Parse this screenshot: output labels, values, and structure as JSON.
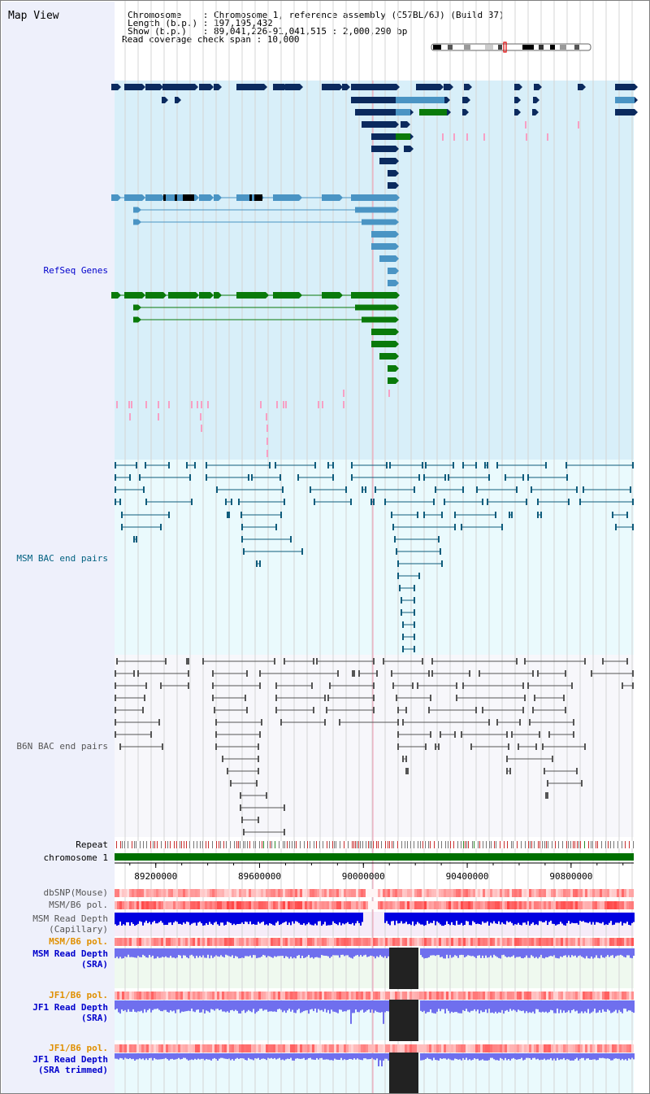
{
  "page": {
    "title": "Map View"
  },
  "header": {
    "lines": [
      "Chromosome    : Chromosome 1, reference assembly (C57BL/6J) (Build 37)",
      "Length (b.p.) : 197,195,432",
      "Show (b.p.)   : 89,041,226-91,041,515 : 2,000,290 bp",
      "Read coverage check span : 10,000"
    ]
  },
  "tracks": {
    "refseq_genes": "RefSeq Genes",
    "msm_bac": "MSM BAC end pairs",
    "b6n_bac": "B6N BAC end pairs",
    "repeat": "Repeat",
    "chromosome": "chromosome 1",
    "dbsnp": "dbSNP(Mouse)",
    "msm_b6_pol_1": "MSM/B6 pol.",
    "msm_depth_cap_1": "MSM Read Depth",
    "msm_depth_cap_2": "(Capillary)",
    "msm_b6_pol_2": "MSM/B6 pol.",
    "msm_depth_sra_1": "MSM Read Depth",
    "msm_depth_sra_2": "(SRA)",
    "jf1_b6_pol_1": "JF1/B6 pol.",
    "jf1_depth_sra_1": "JF1 Read Depth",
    "jf1_depth_sra_2": "(SRA)",
    "jf1_b6_pol_2": "JF1/B6 pol.",
    "jf1_depth_trim_1": "JF1 Read Depth",
    "jf1_depth_trim_2": "(SRA trimmed)"
  },
  "axis": {
    "ticks": [
      {
        "label": "89200000",
        "value": 89200000
      },
      {
        "label": "89600000",
        "value": 89600000
      },
      {
        "label": "90000000",
        "value": 90000000
      },
      {
        "label": "90400000",
        "value": 90400000
      },
      {
        "label": "90800000",
        "value": 90800000
      }
    ],
    "range": [
      89041226,
      91041515
    ]
  },
  "colors": {
    "gene_navy": "#0b2a5e",
    "gene_steel": "#4a94c4",
    "gene_green": "#0a7a0a",
    "msm_bac": "#0f5c7c",
    "b6n_bac": "#555555",
    "depth_blue": "#0000e0",
    "depth_light": "#6f6fee",
    "pol_red": "#f05050",
    "chromosome": "#007000",
    "label_blue": "#0000cc",
    "label_teal": "#006080",
    "label_gray": "#555555",
    "label_orange": "#e09000"
  }
}
